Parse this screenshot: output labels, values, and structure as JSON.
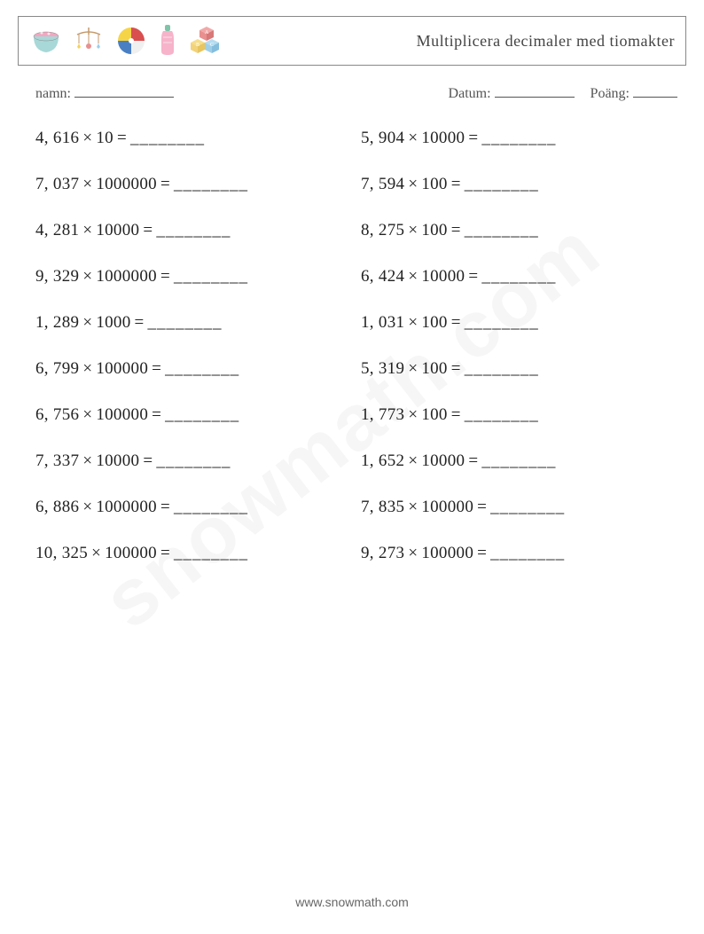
{
  "header": {
    "title": "Multiplicera decimaler med tiomakter"
  },
  "meta": {
    "name_label": "namn:",
    "date_label": "Datum:",
    "score_label": "Poäng:",
    "name_blank_width": 112,
    "date_blank_width": 90,
    "score_blank_width": 50
  },
  "style": {
    "multiply_symbol": "×",
    "equals_symbol": "=",
    "answer_placeholder": "________",
    "problem_fontsize": 19,
    "title_fontsize": 18,
    "meta_fontsize": 16,
    "text_color": "#333333",
    "border_color": "#888888",
    "background_color": "#ffffff"
  },
  "problems": {
    "left": [
      {
        "a": "4, 616",
        "b": "10"
      },
      {
        "a": "7, 037",
        "b": "1000000"
      },
      {
        "a": "4, 281",
        "b": "10000"
      },
      {
        "a": "9, 329",
        "b": "1000000"
      },
      {
        "a": "1, 289",
        "b": "1000"
      },
      {
        "a": "6, 799",
        "b": "100000"
      },
      {
        "a": "6, 756",
        "b": "100000"
      },
      {
        "a": "7, 337",
        "b": "10000"
      },
      {
        "a": "6, 886",
        "b": "1000000"
      },
      {
        "a": "10, 325",
        "b": "100000"
      }
    ],
    "right": [
      {
        "a": "5, 904",
        "b": "10000"
      },
      {
        "a": "7, 594",
        "b": "100"
      },
      {
        "a": "8, 275",
        "b": "100"
      },
      {
        "a": "6, 424",
        "b": "10000"
      },
      {
        "a": "1, 031",
        "b": "100"
      },
      {
        "a": "5, 319",
        "b": "100"
      },
      {
        "a": "1, 773",
        "b": "100"
      },
      {
        "a": "1, 652",
        "b": "10000"
      },
      {
        "a": "7, 835",
        "b": "100000"
      },
      {
        "a": "9, 273",
        "b": "100000"
      }
    ]
  },
  "icons": {
    "bowl_color": "#f4a6c0",
    "bowl_rim": "#a8d8d8",
    "mobile_color": "#e8b088",
    "ball_colors": [
      "#f5d547",
      "#d94f4f",
      "#4a7fc4",
      "#f0f0f0"
    ],
    "bottle_color": "#f4a6c0",
    "bottle_cap": "#7fc4a8",
    "block_colors": [
      "#e89090",
      "#f2d37a",
      "#9fcfe8"
    ]
  },
  "watermark": "snowmath.com",
  "footer": "www.snowmath.com"
}
